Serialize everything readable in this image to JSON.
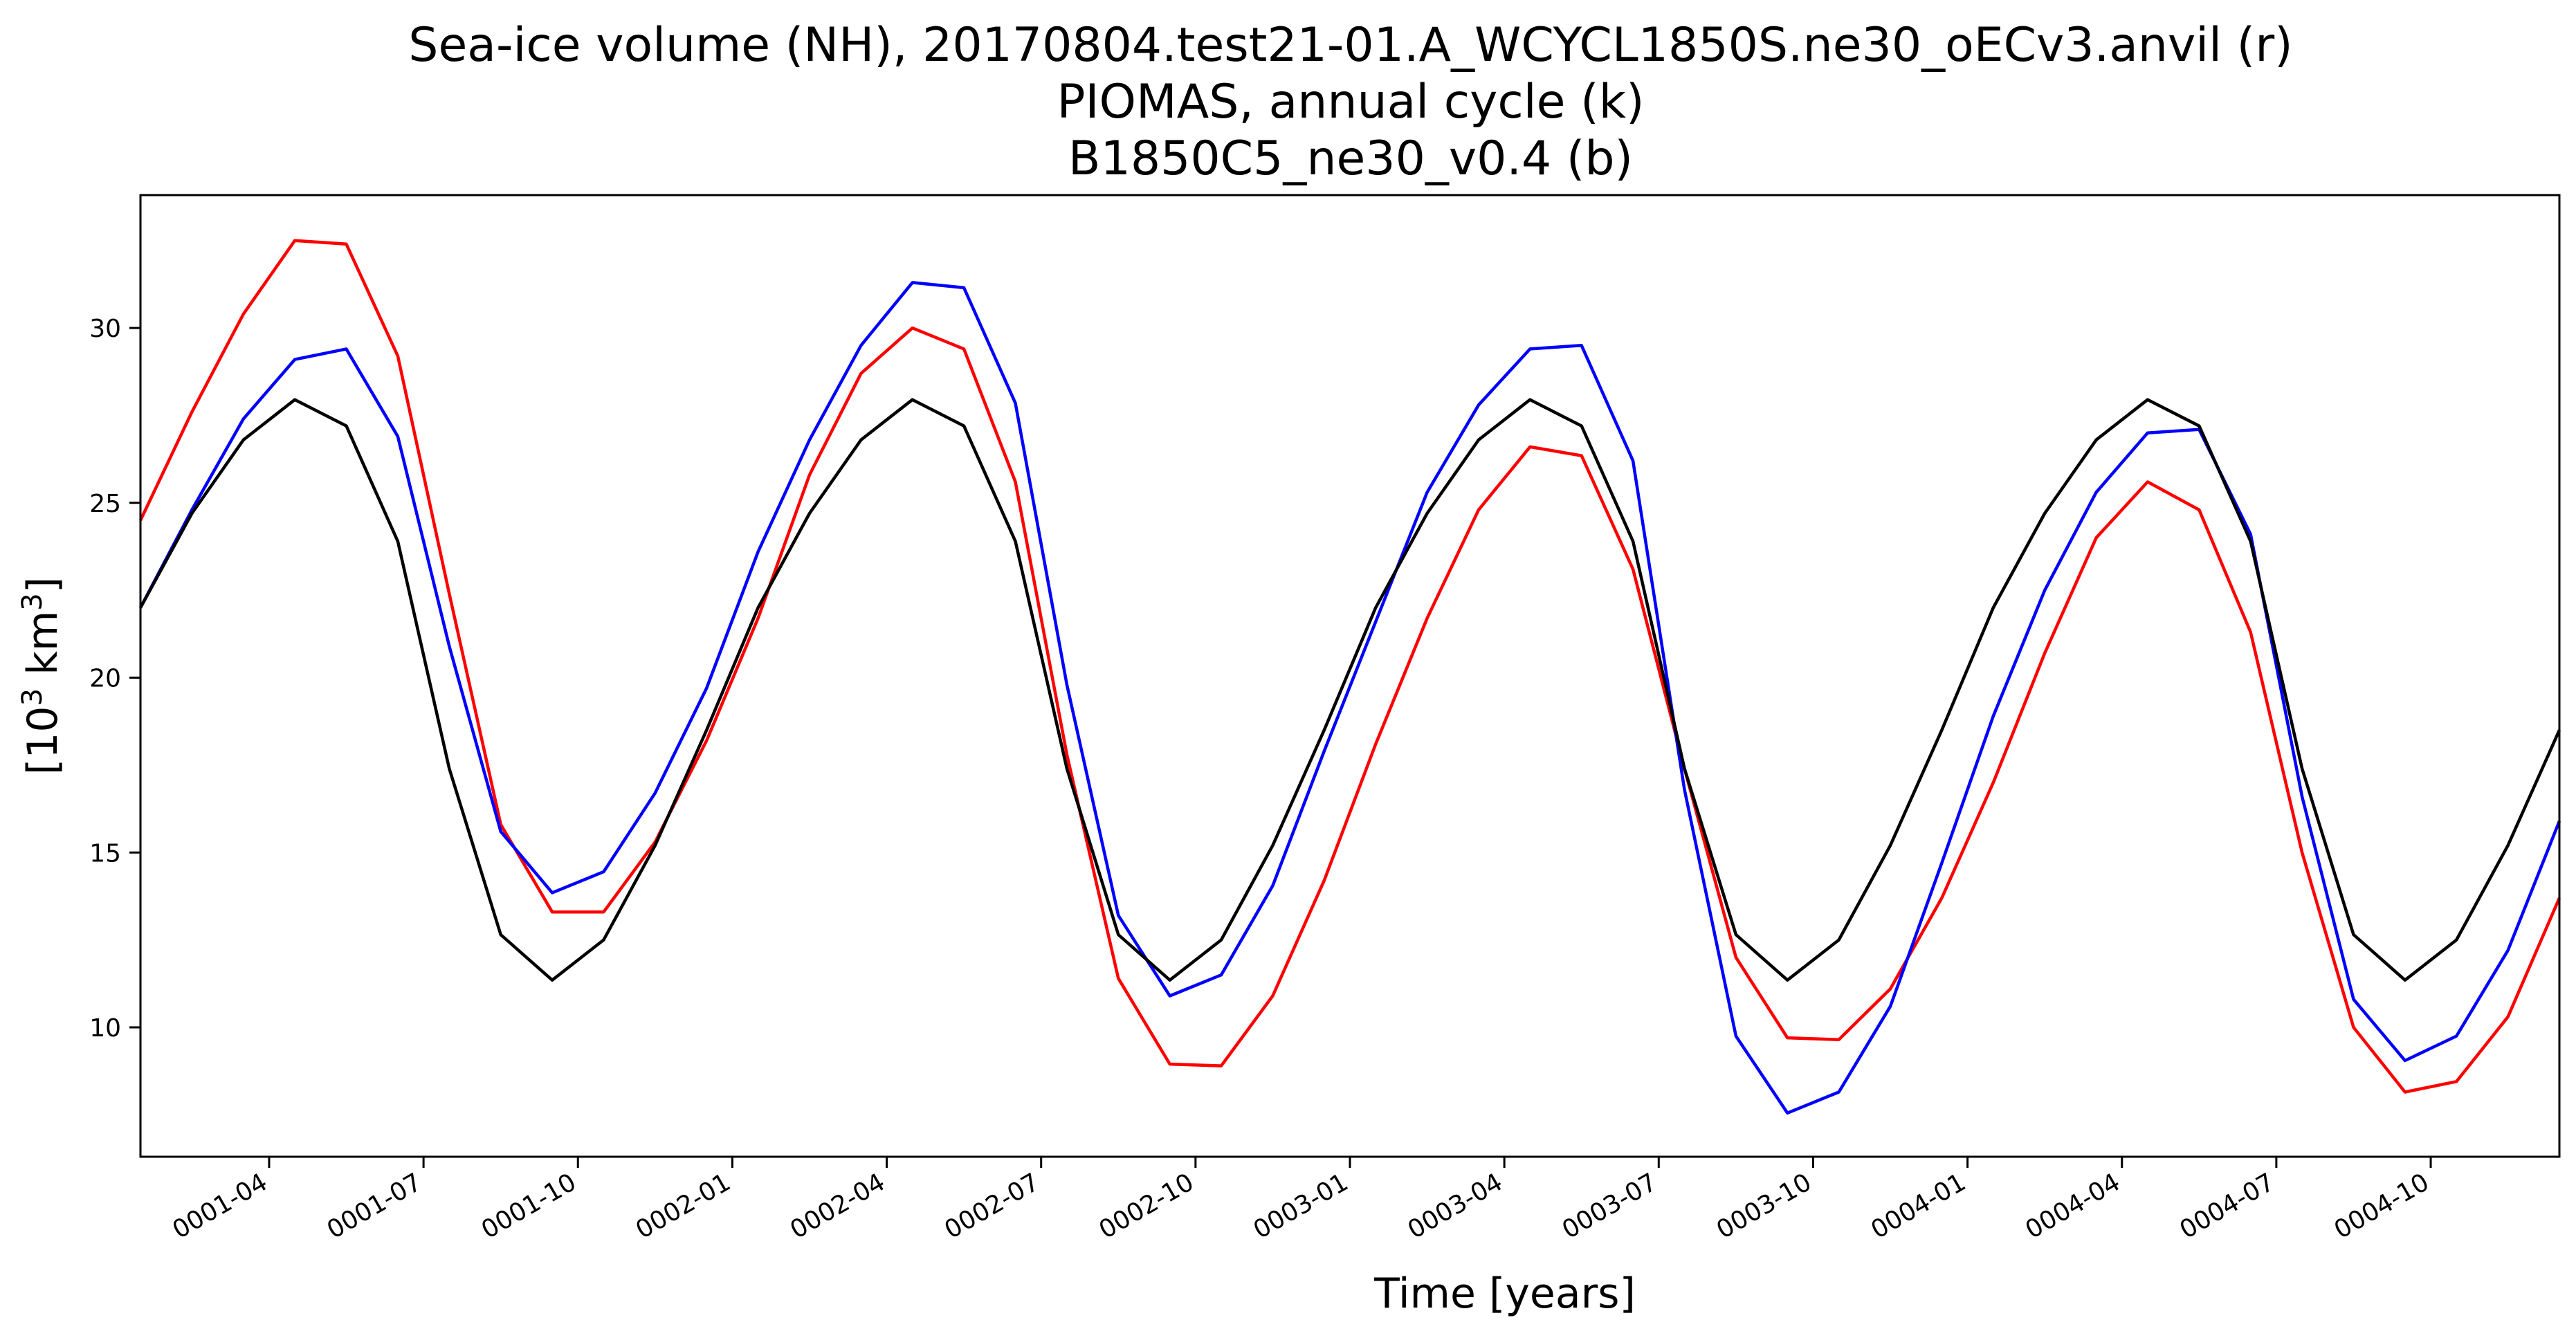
{
  "chart_data": {
    "type": "line",
    "title": [
      "Sea-ice volume (NH), 20170804.test21-01.A_WCYCL1850S.ne30_oECv3.anvil (r)",
      "PIOMAS, annual cycle (k)",
      "B1850C5_ne30_v0.4 (b)"
    ],
    "xlabel": "Time [years]",
    "ylabel": {
      "base": "[10",
      "sup1": "3",
      "mid": " km",
      "sup2": "3",
      "end": "]"
    },
    "ylim": [
      6.3,
      33.8
    ],
    "xlim": [
      0,
      47
    ],
    "grid": false,
    "y_ticks": [
      10,
      15,
      20,
      25,
      30
    ],
    "x_ticks": [
      {
        "pos": 2.5,
        "label": "0001-04"
      },
      {
        "pos": 5.5,
        "label": "0001-07"
      },
      {
        "pos": 8.5,
        "label": "0001-10"
      },
      {
        "pos": 11.5,
        "label": "0002-01"
      },
      {
        "pos": 14.5,
        "label": "0002-04"
      },
      {
        "pos": 17.5,
        "label": "0002-07"
      },
      {
        "pos": 20.5,
        "label": "0002-10"
      },
      {
        "pos": 23.5,
        "label": "0003-01"
      },
      {
        "pos": 26.5,
        "label": "0003-04"
      },
      {
        "pos": 29.5,
        "label": "0003-07"
      },
      {
        "pos": 32.5,
        "label": "0003-10"
      },
      {
        "pos": 35.5,
        "label": "0004-01"
      },
      {
        "pos": 38.5,
        "label": "0004-04"
      },
      {
        "pos": 41.5,
        "label": "0004-07"
      },
      {
        "pos": 44.5,
        "label": "0004-10"
      }
    ],
    "series": [
      {
        "color": "#ff0000",
        "x": [
          0,
          1,
          2,
          3,
          4,
          5,
          6,
          7,
          8,
          9,
          10,
          11,
          12,
          13,
          14,
          15,
          16,
          17,
          18,
          19,
          20,
          21,
          22,
          23,
          24,
          25,
          26,
          27,
          28,
          29,
          30,
          31,
          32,
          33,
          34,
          35,
          36,
          37,
          38,
          39,
          40,
          41,
          42,
          43,
          44,
          45,
          46,
          47
        ],
        "values": [
          24.5,
          27.6,
          30.4,
          32.5,
          32.4,
          29.2,
          22.4,
          15.8,
          13.3,
          13.3,
          15.3,
          18.2,
          21.7,
          25.8,
          28.7,
          30.0,
          29.4,
          25.6,
          17.8,
          11.4,
          8.95,
          8.9,
          10.9,
          14.2,
          18.1,
          21.7,
          24.8,
          26.6,
          26.35,
          23.1,
          17.4,
          12.0,
          9.7,
          9.65,
          11.1,
          13.7,
          17.0,
          20.7,
          24.0,
          25.6,
          24.8,
          21.3,
          15.0,
          10.0,
          8.15,
          8.45,
          10.3,
          13.7
        ]
      },
      {
        "color": "#0000ff",
        "x": [
          0,
          1,
          2,
          3,
          4,
          5,
          6,
          7,
          8,
          9,
          10,
          11,
          12,
          13,
          14,
          15,
          16,
          17,
          18,
          19,
          20,
          21,
          22,
          23,
          24,
          25,
          26,
          27,
          28,
          29,
          30,
          31,
          32,
          33,
          34,
          35,
          36,
          37,
          38,
          39,
          40,
          41,
          42,
          43,
          44,
          45,
          46,
          47
        ],
        "values": [
          22.0,
          24.8,
          27.4,
          29.1,
          29.4,
          26.9,
          20.9,
          15.6,
          13.85,
          14.45,
          16.7,
          19.7,
          23.6,
          26.8,
          29.5,
          31.3,
          31.15,
          27.85,
          19.8,
          13.2,
          10.9,
          11.5,
          14.05,
          17.9,
          21.6,
          25.3,
          27.8,
          29.4,
          29.5,
          26.2,
          16.8,
          9.75,
          7.55,
          8.15,
          10.6,
          14.7,
          18.9,
          22.5,
          25.3,
          27.0,
          27.1,
          24.1,
          16.6,
          10.8,
          9.05,
          9.75,
          12.2,
          15.9
        ]
      },
      {
        "color": "#000000",
        "x": [
          0,
          1,
          2,
          3,
          4,
          5,
          6,
          7,
          8,
          9,
          10,
          11,
          12,
          13,
          14,
          15,
          16,
          17,
          18,
          19,
          20,
          21,
          22,
          23,
          24,
          25,
          26,
          27,
          28,
          29,
          30,
          31,
          32,
          33,
          34,
          35,
          36,
          37,
          38,
          39,
          40,
          41,
          42,
          43,
          44,
          45,
          46,
          47
        ],
        "values": [
          22.0,
          24.7,
          26.8,
          27.95,
          27.2,
          23.9,
          17.4,
          12.65,
          11.35,
          12.5,
          15.2,
          18.5,
          22.0,
          24.7,
          26.8,
          27.95,
          27.2,
          23.9,
          17.4,
          12.65,
          11.35,
          12.5,
          15.2,
          18.5,
          22.0,
          24.7,
          26.8,
          27.95,
          27.2,
          23.9,
          17.4,
          12.65,
          11.35,
          12.5,
          15.2,
          18.5,
          22.0,
          24.7,
          26.8,
          27.95,
          27.2,
          23.9,
          17.4,
          12.65,
          11.35,
          12.5,
          15.2,
          18.5
        ]
      }
    ]
  }
}
